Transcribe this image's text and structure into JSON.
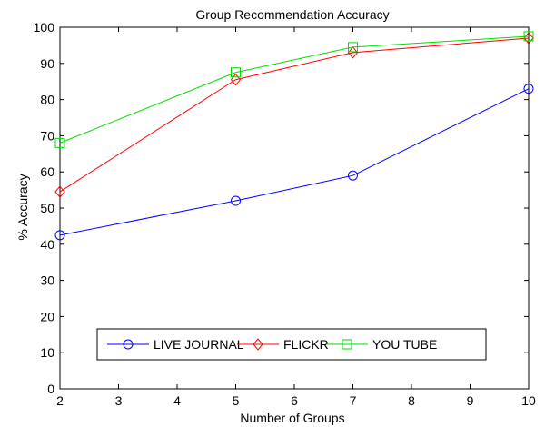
{
  "chart_data": {
    "type": "line",
    "title": "Group Recommendation Accuracy",
    "xlabel": "Number of Groups",
    "ylabel": "% Accuracy",
    "xlim": [
      2,
      10
    ],
    "ylim": [
      0,
      100
    ],
    "xticks": [
      2,
      3,
      4,
      5,
      6,
      7,
      8,
      9,
      10
    ],
    "yticks": [
      0,
      10,
      20,
      30,
      40,
      50,
      60,
      70,
      80,
      90,
      100
    ],
    "grid": false,
    "legend_position": "bottom",
    "legend_orientation": "horizontal",
    "series": [
      {
        "name": "LIVE JOURNAL",
        "color": "#0000ff",
        "marker": "circle",
        "x": [
          2,
          5,
          7,
          10
        ],
        "y": [
          42.5,
          52,
          59,
          83
        ]
      },
      {
        "name": "FLICKR",
        "color": "#ff0000",
        "marker": "diamond",
        "x": [
          2,
          5,
          7,
          10
        ],
        "y": [
          54.5,
          85.5,
          93,
          97
        ]
      },
      {
        "name": "YOU TUBE",
        "color": "#00dd00",
        "marker": "square",
        "x": [
          2,
          5,
          7,
          10
        ],
        "y": [
          68,
          87.5,
          94.5,
          97.5
        ]
      }
    ]
  }
}
